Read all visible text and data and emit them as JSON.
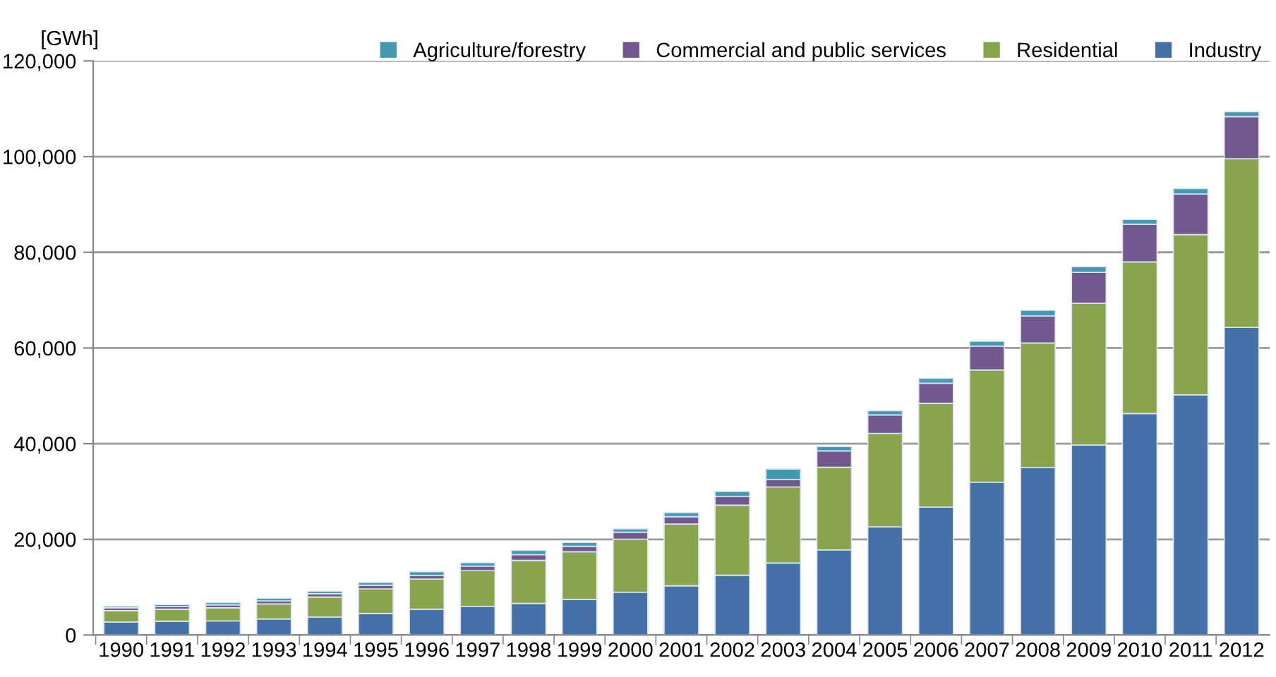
{
  "chart_data": {
    "type": "bar",
    "stacked": true,
    "ylabel": "[GWh]",
    "categories": [
      "1990",
      "1991",
      "1992",
      "1993",
      "1994",
      "1995",
      "1996",
      "1997",
      "1998",
      "1999",
      "2000",
      "2001",
      "2002",
      "2003",
      "2004",
      "2005",
      "2006",
      "2007",
      "2008",
      "2009",
      "2010",
      "2011",
      "2012"
    ],
    "series": [
      {
        "name": "Industry",
        "color": "#4571a8",
        "values": [
          2700,
          2900,
          2950,
          3350,
          3750,
          4500,
          5400,
          6000,
          6600,
          7450,
          8950,
          10300,
          12500,
          15050,
          17800,
          22600,
          26750,
          31950,
          35000,
          39700,
          46300,
          50200,
          64300
        ]
      },
      {
        "name": "Residential",
        "color": "#89a44c",
        "values": [
          2400,
          2500,
          2750,
          3150,
          4200,
          5150,
          6300,
          7450,
          9000,
          9950,
          11100,
          12900,
          14650,
          15900,
          17250,
          19550,
          21700,
          23450,
          26050,
          29650,
          31700,
          33500,
          35250
        ]
      },
      {
        "name": "Commercial and public services",
        "color": "#72588e",
        "values": [
          600,
          600,
          600,
          650,
          700,
          750,
          750,
          950,
          1200,
          1150,
          1450,
          1550,
          1850,
          1550,
          3450,
          3850,
          4200,
          5000,
          5650,
          6450,
          7850,
          8500,
          8800
        ]
      },
      {
        "name": "Agriculture/forestry",
        "color": "#4399b0",
        "values": [
          300,
          400,
          500,
          550,
          500,
          600,
          800,
          700,
          900,
          800,
          700,
          850,
          1000,
          2200,
          900,
          900,
          1000,
          1000,
          1200,
          1200,
          1000,
          1100,
          1050
        ]
      }
    ],
    "ylim": [
      0,
      120000
    ],
    "yticks": [
      0,
      {
        "value": 20000,
        "label": "20,000"
      },
      {
        "value": 40000,
        "label": "40,000"
      },
      {
        "value": 60000,
        "label": "60,000"
      },
      {
        "value": 80000,
        "label": "80,000"
      },
      {
        "value": 100000,
        "label": "100,000"
      },
      {
        "value": 120000,
        "label": "120,000"
      }
    ],
    "grid": "y",
    "legend": "top right"
  }
}
